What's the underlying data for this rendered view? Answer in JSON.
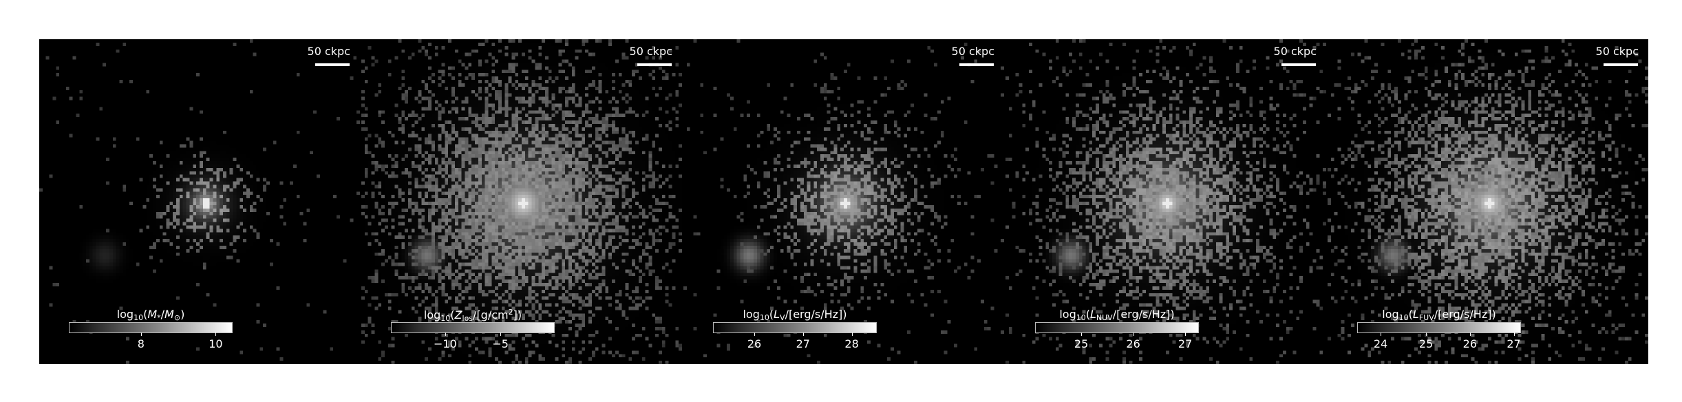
{
  "scale_label": "50 ckpc",
  "panels": [
    {
      "id": "stellar-mass",
      "cbar_title_html": "log<sub class='s'>10</sub>(<i>M</i><sub class='s'>*</sub>/<i>M</i><sub class='s'>⊙</sub>)",
      "ticks": [
        {
          "label": "8",
          "pos": 0.44
        },
        {
          "label": "10",
          "pos": 0.9
        }
      ]
    },
    {
      "id": "metal-mass",
      "cbar_title_html": "log<sub class='s'>10</sub>(<i>Z</i><sub class='s'>los</sub>/[g/cm<sup class='s'>2</sup>])",
      "ticks": [
        {
          "label": "−10",
          "pos": 0.33
        },
        {
          "label": "−5",
          "pos": 0.67
        }
      ]
    },
    {
      "id": "luminosity-v",
      "cbar_title_html": "log<sub class='s'>10</sub>(<i>L</i><sub class='s'>V</sub>/[erg/s/Hz])",
      "ticks": [
        {
          "label": "26",
          "pos": 0.25
        },
        {
          "label": "27",
          "pos": 0.55
        },
        {
          "label": "28",
          "pos": 0.85
        }
      ]
    },
    {
      "id": "luminosity-nuv",
      "cbar_title_html": "log<sub class='s'>10</sub>(<i>L</i><sub class='s'>NUV</sub>/[erg/s/Hz])",
      "ticks": [
        {
          "label": "25",
          "pos": 0.28
        },
        {
          "label": "26",
          "pos": 0.6
        },
        {
          "label": "27",
          "pos": 0.92
        }
      ]
    },
    {
      "id": "luminosity-fuv",
      "cbar_title_html": "log<sub class='s'>10</sub>(<i>L</i><sub class='s'>FUV</sub>/[erg/s/Hz])",
      "ticks": [
        {
          "label": "24",
          "pos": 0.14
        },
        {
          "label": "25",
          "pos": 0.42
        },
        {
          "label": "26",
          "pos": 0.69
        },
        {
          "label": "27",
          "pos": 0.96
        }
      ]
    }
  ]
}
